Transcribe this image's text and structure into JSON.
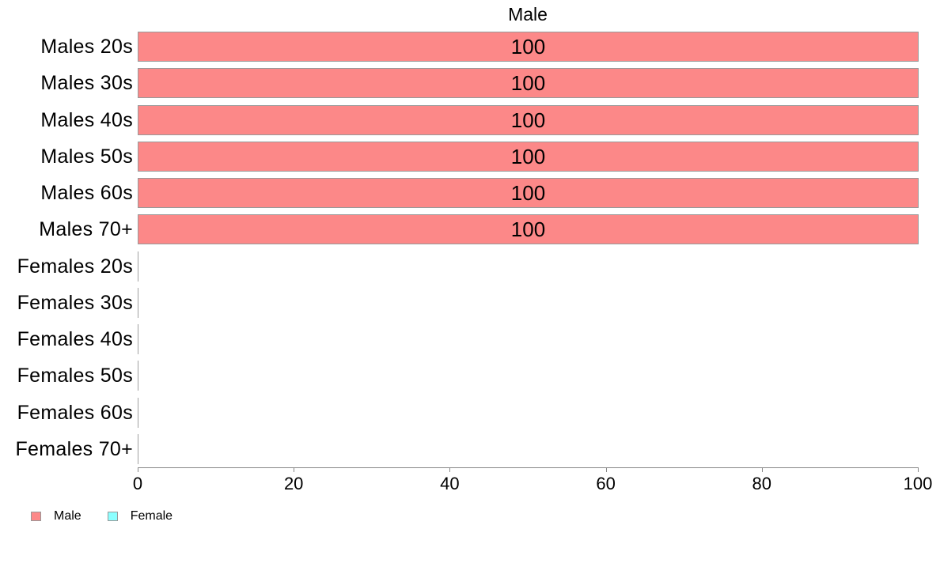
{
  "chart_data": {
    "type": "bar",
    "orientation": "horizontal",
    "title": "Male",
    "xlabel": "",
    "ylabel": "",
    "xlim": [
      0,
      100
    ],
    "x_ticks": [
      0,
      20,
      40,
      60,
      80,
      100
    ],
    "grid": false,
    "legend_position": "bottom-left",
    "rows": [
      {
        "label": "Males 20s",
        "series": "Male",
        "value": 100,
        "value_label": "100"
      },
      {
        "label": "Males 30s",
        "series": "Male",
        "value": 100,
        "value_label": "100"
      },
      {
        "label": "Males 40s",
        "series": "Male",
        "value": 100,
        "value_label": "100"
      },
      {
        "label": "Males 50s",
        "series": "Male",
        "value": 100,
        "value_label": "100"
      },
      {
        "label": "Males 60s",
        "series": "Male",
        "value": 100,
        "value_label": "100"
      },
      {
        "label": "Males 70+",
        "series": "Male",
        "value": 100,
        "value_label": "100"
      },
      {
        "label": "Females 20s",
        "series": "Female",
        "value": 0,
        "value_label": ""
      },
      {
        "label": "Females 30s",
        "series": "Female",
        "value": 0,
        "value_label": ""
      },
      {
        "label": "Females 40s",
        "series": "Female",
        "value": 0,
        "value_label": ""
      },
      {
        "label": "Females 50s",
        "series": "Female",
        "value": 0,
        "value_label": ""
      },
      {
        "label": "Females 60s",
        "series": "Female",
        "value": 0,
        "value_label": ""
      },
      {
        "label": "Females 70+",
        "series": "Female",
        "value": 0,
        "value_label": ""
      }
    ],
    "legend": [
      {
        "label": "Male",
        "color": "#FC8888"
      },
      {
        "label": "Female",
        "color": "#8CFFFF"
      }
    ],
    "colors": {
      "bar_border": "#999999",
      "axis": "#888888",
      "text": "#000000"
    }
  }
}
